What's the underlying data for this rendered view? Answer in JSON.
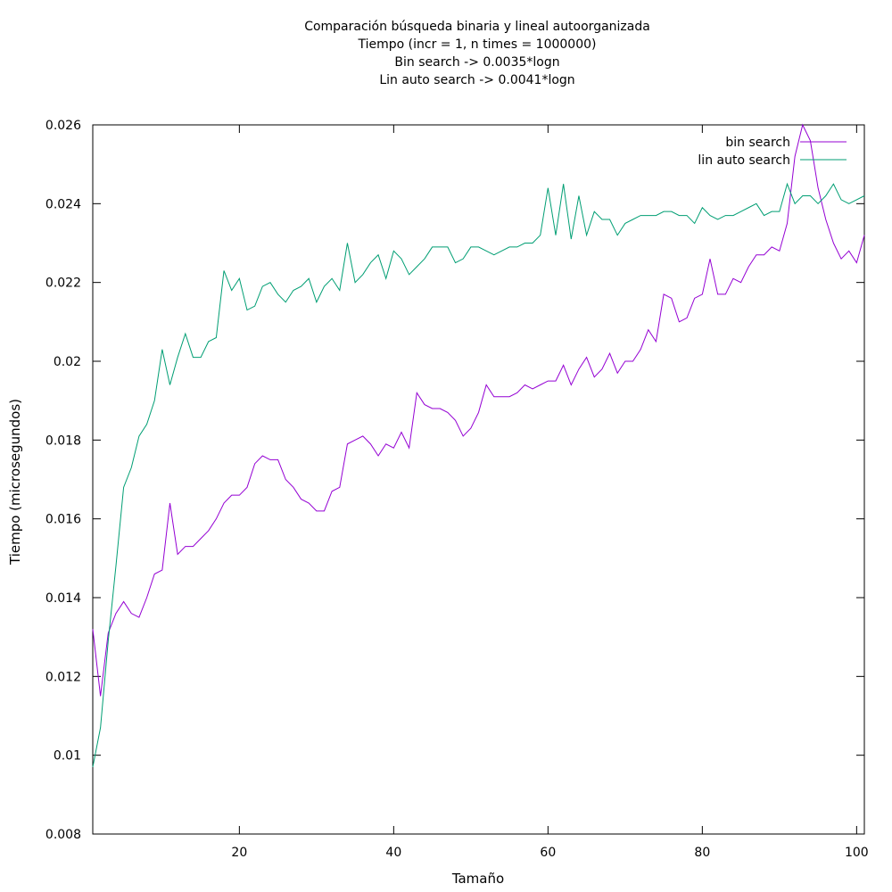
{
  "chart_data": {
    "type": "line",
    "title_lines": [
      "Comparación búsqueda binaria y lineal autoorganizada",
      "Tiempo (incr = 1, n times = 1000000)",
      "Bin search -> 0.0035*logn",
      "Lin auto search -> 0.0041*logn"
    ],
    "xlabel": "Tamaño",
    "ylabel": "Tiempo (microsegundos)",
    "xlim": [
      1,
      101
    ],
    "ylim": [
      0.008,
      0.026
    ],
    "x_ticks": [
      20,
      40,
      60,
      80,
      100
    ],
    "x_tick_labels": [
      "20",
      "40",
      "60",
      "80",
      "100"
    ],
    "y_ticks": [
      0.008,
      0.01,
      0.012,
      0.014,
      0.016,
      0.018,
      0.02,
      0.022,
      0.024,
      0.026
    ],
    "y_tick_labels": [
      "0.008",
      "0.01",
      "0.012",
      "0.014",
      "0.016",
      "0.018",
      "0.02",
      "0.022",
      "0.024",
      "0.026"
    ],
    "grid": false,
    "legend_position": "top-right",
    "series": [
      {
        "name": "bin search",
        "color": "#9400d3",
        "points": [
          [
            1,
            0.0132
          ],
          [
            2,
            0.0115
          ],
          [
            3,
            0.0131
          ],
          [
            4,
            0.0136
          ],
          [
            5,
            0.0139
          ],
          [
            6,
            0.0136
          ],
          [
            7,
            0.0135
          ],
          [
            8,
            0.014
          ],
          [
            9,
            0.0146
          ],
          [
            10,
            0.0147
          ],
          [
            11,
            0.0164
          ],
          [
            12,
            0.0151
          ],
          [
            13,
            0.0153
          ],
          [
            14,
            0.0153
          ],
          [
            15,
            0.0155
          ],
          [
            16,
            0.0157
          ],
          [
            17,
            0.016
          ],
          [
            18,
            0.0164
          ],
          [
            19,
            0.0166
          ],
          [
            20,
            0.0166
          ],
          [
            21,
            0.0168
          ],
          [
            22,
            0.0174
          ],
          [
            23,
            0.0176
          ],
          [
            24,
            0.0175
          ],
          [
            25,
            0.0175
          ],
          [
            26,
            0.017
          ],
          [
            27,
            0.0168
          ],
          [
            28,
            0.0165
          ],
          [
            29,
            0.0164
          ],
          [
            30,
            0.0162
          ],
          [
            31,
            0.0162
          ],
          [
            32,
            0.0167
          ],
          [
            33,
            0.0168
          ],
          [
            34,
            0.0179
          ],
          [
            35,
            0.018
          ],
          [
            36,
            0.0181
          ],
          [
            37,
            0.0179
          ],
          [
            38,
            0.0176
          ],
          [
            39,
            0.0179
          ],
          [
            40,
            0.0178
          ],
          [
            41,
            0.0182
          ],
          [
            42,
            0.0178
          ],
          [
            43,
            0.0192
          ],
          [
            44,
            0.0189
          ],
          [
            45,
            0.0188
          ],
          [
            46,
            0.0188
          ],
          [
            47,
            0.0187
          ],
          [
            48,
            0.0185
          ],
          [
            49,
            0.0181
          ],
          [
            50,
            0.0183
          ],
          [
            51,
            0.0187
          ],
          [
            52,
            0.0194
          ],
          [
            53,
            0.0191
          ],
          [
            54,
            0.0191
          ],
          [
            55,
            0.0191
          ],
          [
            56,
            0.0192
          ],
          [
            57,
            0.0194
          ],
          [
            58,
            0.0193
          ],
          [
            59,
            0.0194
          ],
          [
            60,
            0.0195
          ],
          [
            61,
            0.0195
          ],
          [
            62,
            0.0199
          ],
          [
            63,
            0.0194
          ],
          [
            64,
            0.0198
          ],
          [
            65,
            0.0201
          ],
          [
            66,
            0.0196
          ],
          [
            67,
            0.0198
          ],
          [
            68,
            0.0202
          ],
          [
            69,
            0.0197
          ],
          [
            70,
            0.02
          ],
          [
            71,
            0.02
          ],
          [
            72,
            0.0203
          ],
          [
            73,
            0.0208
          ],
          [
            74,
            0.0205
          ],
          [
            75,
            0.0217
          ],
          [
            76,
            0.0216
          ],
          [
            77,
            0.021
          ],
          [
            78,
            0.0211
          ],
          [
            79,
            0.0216
          ],
          [
            80,
            0.0217
          ],
          [
            81,
            0.0226
          ],
          [
            82,
            0.0217
          ],
          [
            83,
            0.0217
          ],
          [
            84,
            0.0221
          ],
          [
            85,
            0.022
          ],
          [
            86,
            0.0224
          ],
          [
            87,
            0.0227
          ],
          [
            88,
            0.0227
          ],
          [
            89,
            0.0229
          ],
          [
            90,
            0.0228
          ],
          [
            91,
            0.0235
          ],
          [
            92,
            0.0252
          ],
          [
            93,
            0.026
          ],
          [
            94,
            0.0256
          ],
          [
            95,
            0.0244
          ],
          [
            96,
            0.0236
          ],
          [
            97,
            0.023
          ],
          [
            98,
            0.0226
          ],
          [
            99,
            0.0228
          ],
          [
            100,
            0.0225
          ],
          [
            101,
            0.0232
          ]
        ]
      },
      {
        "name": "lin auto search",
        "color": "#009e73",
        "points": [
          [
            1,
            0.0097
          ],
          [
            2,
            0.0107
          ],
          [
            3,
            0.0129
          ],
          [
            4,
            0.0148
          ],
          [
            5,
            0.0168
          ],
          [
            6,
            0.0173
          ],
          [
            7,
            0.0181
          ],
          [
            8,
            0.0184
          ],
          [
            9,
            0.019
          ],
          [
            10,
            0.0203
          ],
          [
            11,
            0.0194
          ],
          [
            12,
            0.0201
          ],
          [
            13,
            0.0207
          ],
          [
            14,
            0.0201
          ],
          [
            15,
            0.0201
          ],
          [
            16,
            0.0205
          ],
          [
            17,
            0.0206
          ],
          [
            18,
            0.0223
          ],
          [
            19,
            0.0218
          ],
          [
            20,
            0.0221
          ],
          [
            21,
            0.0213
          ],
          [
            22,
            0.0214
          ],
          [
            23,
            0.0219
          ],
          [
            24,
            0.022
          ],
          [
            25,
            0.0217
          ],
          [
            26,
            0.0215
          ],
          [
            27,
            0.0218
          ],
          [
            28,
            0.0219
          ],
          [
            29,
            0.0221
          ],
          [
            30,
            0.0215
          ],
          [
            31,
            0.0219
          ],
          [
            32,
            0.0221
          ],
          [
            33,
            0.0218
          ],
          [
            34,
            0.023
          ],
          [
            35,
            0.022
          ],
          [
            36,
            0.0222
          ],
          [
            37,
            0.0225
          ],
          [
            38,
            0.0227
          ],
          [
            39,
            0.0221
          ],
          [
            40,
            0.0228
          ],
          [
            41,
            0.0226
          ],
          [
            42,
            0.0222
          ],
          [
            43,
            0.0224
          ],
          [
            44,
            0.0226
          ],
          [
            45,
            0.0229
          ],
          [
            46,
            0.0229
          ],
          [
            47,
            0.0229
          ],
          [
            48,
            0.0225
          ],
          [
            49,
            0.0226
          ],
          [
            50,
            0.0229
          ],
          [
            51,
            0.0229
          ],
          [
            52,
            0.0228
          ],
          [
            53,
            0.0227
          ],
          [
            54,
            0.0228
          ],
          [
            55,
            0.0229
          ],
          [
            56,
            0.0229
          ],
          [
            57,
            0.023
          ],
          [
            58,
            0.023
          ],
          [
            59,
            0.0232
          ],
          [
            60,
            0.0244
          ],
          [
            61,
            0.0232
          ],
          [
            62,
            0.0245
          ],
          [
            63,
            0.0231
          ],
          [
            64,
            0.0242
          ],
          [
            65,
            0.0232
          ],
          [
            66,
            0.0238
          ],
          [
            67,
            0.0236
          ],
          [
            68,
            0.0236
          ],
          [
            69,
            0.0232
          ],
          [
            70,
            0.0235
          ],
          [
            71,
            0.0236
          ],
          [
            72,
            0.0237
          ],
          [
            73,
            0.0237
          ],
          [
            74,
            0.0237
          ],
          [
            75,
            0.0238
          ],
          [
            76,
            0.0238
          ],
          [
            77,
            0.0237
          ],
          [
            78,
            0.0237
          ],
          [
            79,
            0.0235
          ],
          [
            80,
            0.0239
          ],
          [
            81,
            0.0237
          ],
          [
            82,
            0.0236
          ],
          [
            83,
            0.0237
          ],
          [
            84,
            0.0237
          ],
          [
            85,
            0.0238
          ],
          [
            86,
            0.0239
          ],
          [
            87,
            0.024
          ],
          [
            88,
            0.0237
          ],
          [
            89,
            0.0238
          ],
          [
            90,
            0.0238
          ],
          [
            91,
            0.0245
          ],
          [
            92,
            0.024
          ],
          [
            93,
            0.0242
          ],
          [
            94,
            0.0242
          ],
          [
            95,
            0.024
          ],
          [
            96,
            0.0242
          ],
          [
            97,
            0.0245
          ],
          [
            98,
            0.0241
          ],
          [
            99,
            0.024
          ],
          [
            100,
            0.0241
          ],
          [
            101,
            0.0242
          ]
        ]
      }
    ]
  }
}
